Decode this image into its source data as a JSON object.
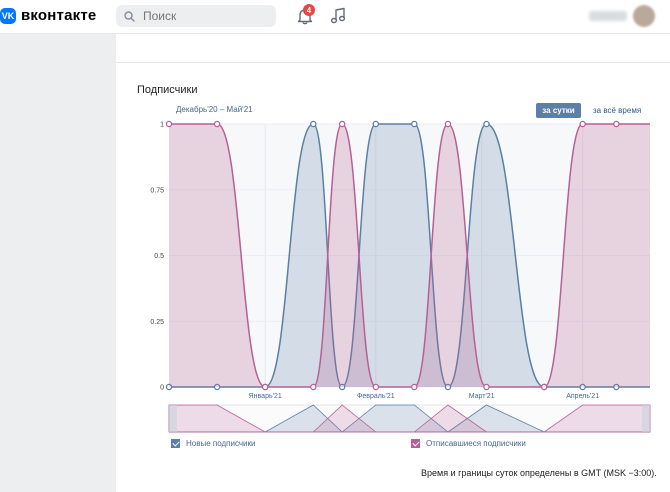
{
  "header": {
    "logo_icon_text": "VK",
    "logo_text": "вконтакте",
    "search_placeholder": "Поиск",
    "notifications_count": "4"
  },
  "stats": {
    "section_title": "Подписчики",
    "date_range": "Декабрь'20 – Май'21",
    "tabs": [
      {
        "label": "за сутки",
        "active": true
      },
      {
        "label": "за всё время",
        "active": false
      }
    ],
    "legend": [
      {
        "label": "Новые подписчики",
        "checked": true,
        "color": "#5b7fa6"
      },
      {
        "label": "Отписавшиеся подписчики",
        "checked": true,
        "color": "#b85f94"
      }
    ],
    "footnote": "Время и границы суток определены в GMT (MSK −3:00)."
  },
  "chart_data": {
    "type": "area",
    "y_ticks": [
      "1",
      "0.75",
      "0.5",
      "0.25",
      "0"
    ],
    "ylim": [
      0,
      1
    ],
    "x_month_labels": [
      "Январь'21",
      "Февраль'21",
      "Март'21",
      "Апрель'21"
    ],
    "series": [
      {
        "name": "Новые подписчики",
        "color": "#5b7fa6",
        "points": [
          [
            0,
            0
          ],
          [
            0.1,
            0
          ],
          [
            0.2,
            0
          ],
          [
            0.3,
            1
          ],
          [
            0.36,
            0
          ],
          [
            0.43,
            1
          ],
          [
            0.51,
            1
          ],
          [
            0.58,
            0
          ],
          [
            0.66,
            1
          ],
          [
            0.78,
            0
          ],
          [
            0.86,
            0
          ],
          [
            0.93,
            0
          ]
        ]
      },
      {
        "name": "Отписавшиеся подписчики",
        "color": "#b85f94",
        "points": [
          [
            0,
            1
          ],
          [
            0.1,
            1
          ],
          [
            0.2,
            0
          ],
          [
            0.3,
            0
          ],
          [
            0.36,
            1
          ],
          [
            0.43,
            0
          ],
          [
            0.51,
            0
          ],
          [
            0.58,
            1
          ],
          [
            0.66,
            0
          ],
          [
            0.78,
            0
          ],
          [
            0.86,
            1
          ],
          [
            0.93,
            1
          ]
        ]
      }
    ]
  }
}
